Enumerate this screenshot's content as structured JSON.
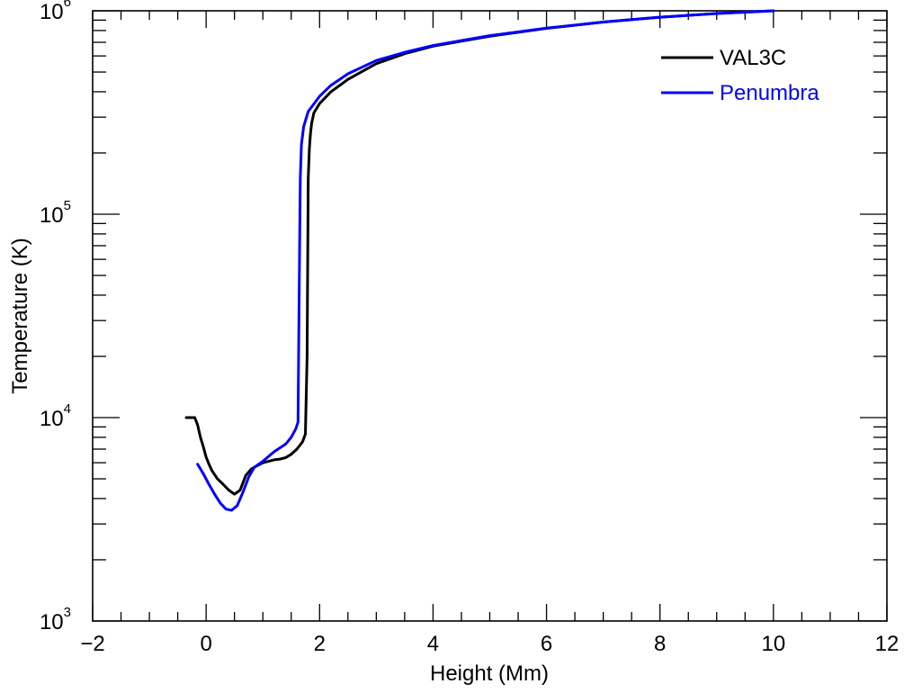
{
  "chart_data": {
    "type": "line",
    "title": "",
    "xlabel": "Height (Mm)",
    "ylabel": "Temperature (K)",
    "xlim": [
      -2,
      12
    ],
    "ylim": [
      1000,
      1000000
    ],
    "yscale": "log",
    "x_ticks": [
      -2,
      0,
      2,
      4,
      6,
      8,
      10,
      12
    ],
    "x_tick_labels": [
      "−2",
      "0",
      "2",
      "4",
      "6",
      "8",
      "10",
      "12"
    ],
    "y_ticks": [
      1000,
      10000,
      100000,
      1000000
    ],
    "y_tick_bases": [
      "10",
      "10",
      "10",
      "10"
    ],
    "y_tick_exponents": [
      "3",
      "4",
      "5",
      "6"
    ],
    "grid": false,
    "legend": "top-right",
    "series": [
      {
        "name": "VAL3C",
        "color": "#000000",
        "x": [
          -0.35,
          -0.2,
          -0.15,
          -0.1,
          -0.05,
          0.0,
          0.05,
          0.1,
          0.2,
          0.3,
          0.4,
          0.5,
          0.6,
          0.7,
          0.8,
          0.9,
          1.0,
          1.1,
          1.2,
          1.3,
          1.4,
          1.5,
          1.6,
          1.7,
          1.75,
          1.78,
          1.8,
          1.82,
          1.84,
          1.86,
          1.9,
          2.0,
          2.2,
          2.5,
          3.0,
          3.5,
          4.0,
          5.0,
          6.0,
          7.0,
          8.0,
          9.0,
          10.0
        ],
        "y": [
          10000,
          10000,
          9200,
          8000,
          7200,
          6400,
          5900,
          5500,
          5000,
          4700,
          4400,
          4200,
          4400,
          5200,
          5600,
          5800,
          6000,
          6100,
          6200,
          6250,
          6350,
          6600,
          7000,
          7600,
          8300,
          20000,
          150000,
          210000,
          250000,
          280000,
          315000,
          350000,
          400000,
          460000,
          550000,
          615000,
          670000,
          750000,
          820000,
          880000,
          930000,
          970000,
          1000000
        ]
      },
      {
        "name": "Penumbra",
        "color": "#0000ff",
        "x": [
          -0.15,
          -0.05,
          0.05,
          0.15,
          0.25,
          0.35,
          0.45,
          0.55,
          0.65,
          0.75,
          0.85,
          1.0,
          1.2,
          1.4,
          1.5,
          1.58,
          1.62,
          1.64,
          1.66,
          1.68,
          1.72,
          1.8,
          2.0,
          2.2,
          2.5,
          3.0,
          3.5,
          4.0,
          5.0,
          6.0,
          7.0,
          8.0,
          9.0,
          10.0
        ],
        "y": [
          5900,
          5300,
          4700,
          4200,
          3800,
          3550,
          3500,
          3700,
          4300,
          5100,
          5700,
          6100,
          6800,
          7400,
          8000,
          8800,
          9500,
          40000,
          150000,
          220000,
          270000,
          320000,
          380000,
          430000,
          490000,
          570000,
          625000,
          675000,
          755000,
          822000,
          880000,
          930000,
          970000,
          1000000
        ]
      }
    ]
  }
}
